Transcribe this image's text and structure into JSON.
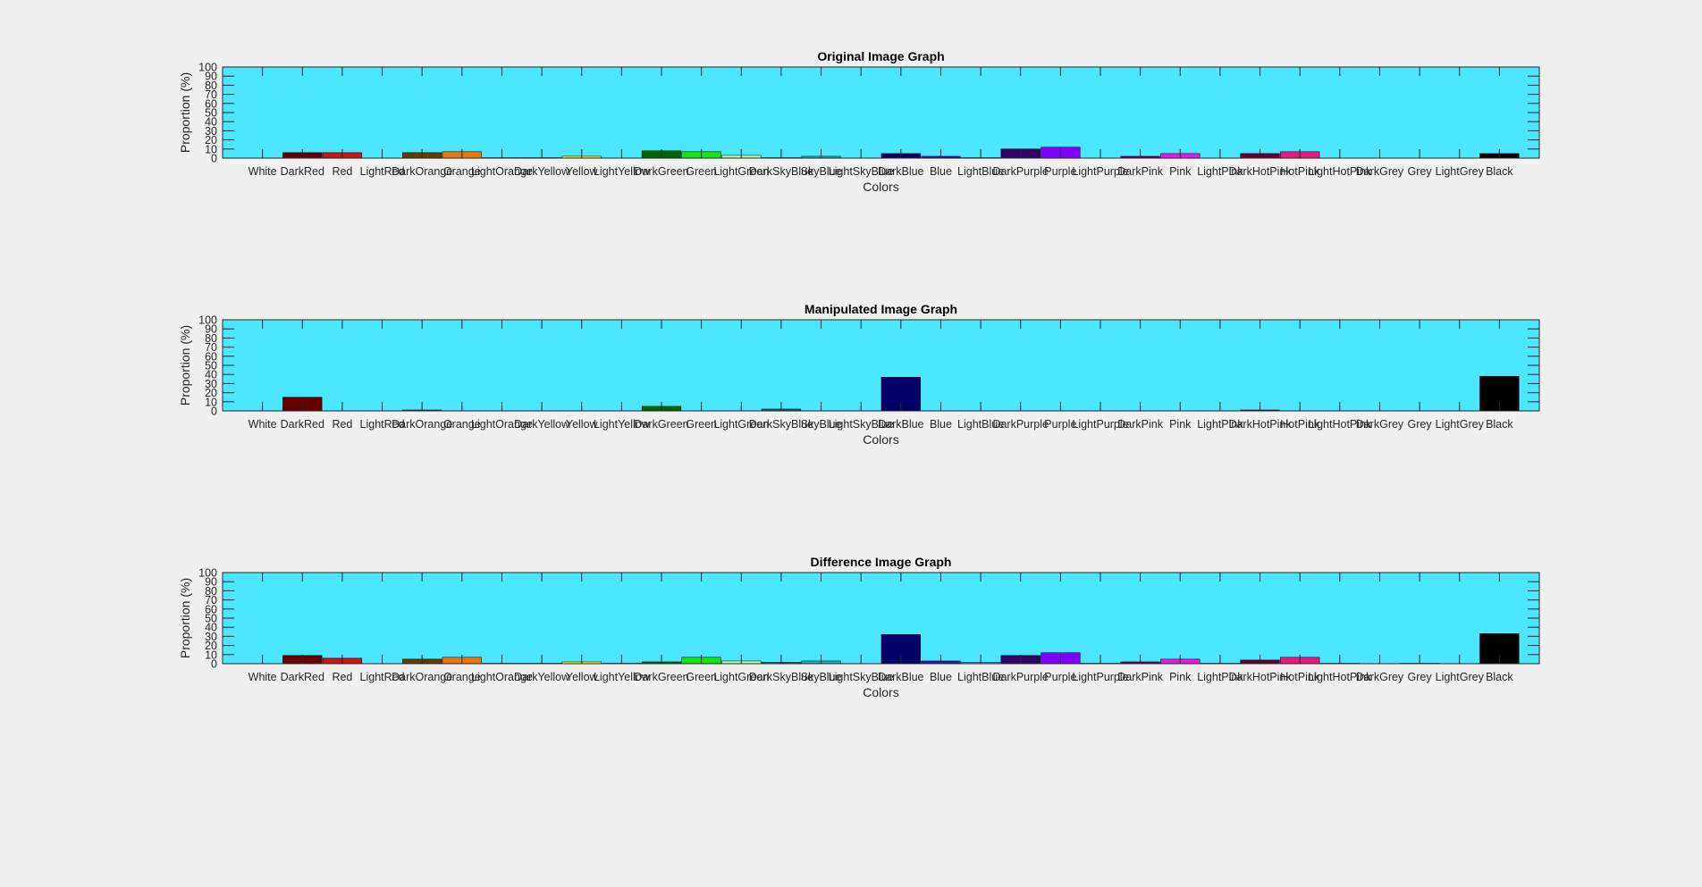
{
  "figure_background": "#f0f0f0",
  "plot_background": "#4de6ff",
  "chart_data": [
    {
      "type": "bar",
      "title": "Original Image Graph",
      "xlabel": "Colors",
      "ylabel": "Proportion (%)",
      "ylim": [
        0,
        100
      ],
      "yticks": [
        "0",
        "10",
        "20",
        "30",
        "40",
        "50",
        "60",
        "70",
        "80",
        "90",
        "100"
      ],
      "grid": false,
      "categories": [
        "White",
        "DarkRed",
        "Red",
        "LightRed",
        "DarkOrange",
        "Orange",
        "LightOrange",
        "DarkYellow",
        "Yellow",
        "LightYellow",
        "DarkGreen",
        "Green",
        "LightGreen",
        "DarkSkyBlue",
        "SkyBlue",
        "LightSkyBlue",
        "DarkBlue",
        "Blue",
        "LightBlue",
        "DarkPurple",
        "Purple",
        "LightPurple",
        "DarkPink",
        "Pink",
        "LightPink",
        "DarkHotPink",
        "HotPink",
        "LightHotPink",
        "DarkGrey",
        "Grey",
        "LightGrey",
        "Black"
      ],
      "values": [
        0,
        6,
        6,
        0,
        6,
        7,
        0.5,
        0.5,
        2,
        0,
        8,
        7,
        3,
        0.5,
        2,
        0,
        5,
        2,
        0.5,
        10,
        12,
        0,
        2,
        5,
        0,
        5,
        7,
        0,
        0,
        0,
        0,
        5
      ]
    },
    {
      "type": "bar",
      "title": "Manipulated Image Graph",
      "xlabel": "Colors",
      "ylabel": "Proportion (%)",
      "ylim": [
        0,
        100
      ],
      "yticks": [
        "0",
        "10",
        "20",
        "30",
        "40",
        "50",
        "60",
        "70",
        "80",
        "90",
        "100"
      ],
      "grid": false,
      "categories": [
        "White",
        "DarkRed",
        "Red",
        "LightRed",
        "DarkOrange",
        "Orange",
        "LightOrange",
        "DarkYellow",
        "Yellow",
        "LightYellow",
        "DarkGreen",
        "Green",
        "LightGreen",
        "DarkSkyBlue",
        "SkyBlue",
        "LightSkyBlue",
        "DarkBlue",
        "Blue",
        "LightBlue",
        "DarkPurple",
        "Purple",
        "LightPurple",
        "DarkPink",
        "Pink",
        "LightPink",
        "DarkHotPink",
        "HotPink",
        "LightHotPink",
        "DarkGrey",
        "Grey",
        "LightGrey",
        "Black"
      ],
      "values": [
        0,
        15,
        0,
        0,
        1,
        0,
        0,
        0,
        0,
        0,
        5,
        0,
        0,
        2,
        0,
        0,
        37,
        0,
        0,
        0,
        0,
        0,
        0,
        0,
        0,
        1,
        0,
        0,
        0,
        0,
        0,
        38
      ]
    },
    {
      "type": "bar",
      "title": "Difference Image Graph",
      "xlabel": "Colors",
      "ylabel": "Proportion (%)",
      "ylim": [
        0,
        100
      ],
      "yticks": [
        "0",
        "10",
        "20",
        "30",
        "40",
        "50",
        "60",
        "70",
        "80",
        "90",
        "100"
      ],
      "grid": false,
      "categories": [
        "White",
        "DarkRed",
        "Red",
        "LightRed",
        "DarkOrange",
        "Orange",
        "LightOrange",
        "DarkYellow",
        "Yellow",
        "LightYellow",
        "DarkGreen",
        "Green",
        "LightGreen",
        "DarkSkyBlue",
        "SkyBlue",
        "LightSkyBlue",
        "DarkBlue",
        "Blue",
        "LightBlue",
        "DarkPurple",
        "Purple",
        "LightPurple",
        "DarkPink",
        "Pink",
        "LightPink",
        "DarkHotPink",
        "HotPink",
        "LightHotPink",
        "DarkGrey",
        "Grey",
        "LightGrey",
        "Black"
      ],
      "values": [
        0,
        9,
        6,
        0,
        5,
        7,
        0.5,
        0.5,
        2,
        0.5,
        2,
        7,
        3,
        1.5,
        3,
        0,
        32,
        3,
        1.5,
        9,
        12,
        0.5,
        2,
        5,
        0.5,
        4,
        7,
        0.5,
        0,
        0.5,
        0,
        33
      ]
    }
  ],
  "bar_colors": [
    "#ffffff",
    "#660000",
    "#cc1414",
    "#ff8080",
    "#663d00",
    "#e6780f",
    "#ffcc80",
    "#666600",
    "#ffff00",
    "#ffff99",
    "#006600",
    "#14e614",
    "#b3ffb3",
    "#006666",
    "#1ab3b3",
    "#99e6ff",
    "#000066",
    "#1a1ab3",
    "#8080ff",
    "#330066",
    "#8000ff",
    "#cc99ff",
    "#660066",
    "#e61ae6",
    "#ff99ff",
    "#660033",
    "#e6197f",
    "#ff99cc",
    "#404040",
    "#808080",
    "#c0c0c0",
    "#000000"
  ]
}
